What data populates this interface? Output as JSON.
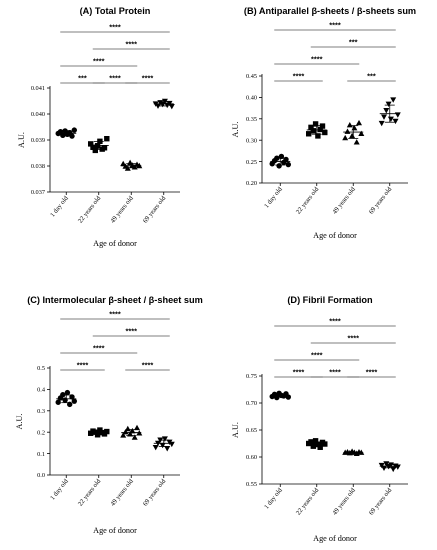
{
  "chart_data": [
    {
      "type": "scatter",
      "title": "(A) Total Protein",
      "xlabel": "Age of donor",
      "ylabel": "A.U.",
      "ylim": [
        0.037,
        0.041
      ],
      "yticks": [
        "0.037",
        "0.038",
        "0.039",
        "0.040",
        "0.041"
      ],
      "categories": [
        "1 day old",
        "22 years old",
        "49 years old",
        "69 years old"
      ],
      "markers": [
        "circle",
        "square",
        "triangle-up",
        "triangle-down"
      ],
      "series": [
        {
          "values": [
            0.03925,
            0.03932,
            0.03918,
            0.03935,
            0.03922,
            0.03928,
            0.03915,
            0.03938
          ],
          "mean": 0.03926,
          "sd": 0.0001
        },
        {
          "values": [
            0.03885,
            0.03872,
            0.0386,
            0.03878,
            0.03895,
            0.03865,
            0.0387,
            0.03905
          ],
          "mean": 0.03879,
          "sd": 0.00015
        },
        {
          "values": [
            0.03808,
            0.03798,
            0.0379,
            0.03812,
            0.03802,
            0.03795,
            0.03805,
            0.038
          ],
          "mean": 0.03801,
          "sd": 8e-05
        },
        {
          "values": [
            0.0404,
            0.04032,
            0.04045,
            0.04038,
            0.0405,
            0.04035,
            0.04042,
            0.0403
          ],
          "mean": 0.04039,
          "sd": 8e-05
        }
      ],
      "comparisons": [
        {
          "from": 0,
          "to": 3,
          "label": "****"
        },
        {
          "from": 1,
          "to": 3,
          "label": "****"
        },
        {
          "from": 0,
          "to": 2,
          "label": "****"
        },
        {
          "from": 0,
          "to": 1,
          "label": "***"
        },
        {
          "from": 1,
          "to": 2,
          "label": "****"
        },
        {
          "from": 2,
          "to": 3,
          "label": "****"
        }
      ]
    },
    {
      "type": "scatter",
      "title": "(B) Antiparallel β-sheets / β-sheets sum",
      "xlabel": "Age of donor",
      "ylabel": "A.U.",
      "ylim": [
        0.2,
        0.45
      ],
      "yticks": [
        "0.20",
        "0.25",
        "0.30",
        "0.35",
        "0.40",
        "0.45"
      ],
      "categories": [
        "1 day old",
        "22 years old",
        "49 years old",
        "69 years old"
      ],
      "markers": [
        "circle",
        "square",
        "triangle-up",
        "triangle-down"
      ],
      "series": [
        {
          "values": [
            0.245,
            0.252,
            0.258,
            0.24,
            0.262,
            0.248,
            0.255,
            0.243
          ],
          "mean": 0.25,
          "sd": 0.008
        },
        {
          "values": [
            0.315,
            0.33,
            0.322,
            0.338,
            0.31,
            0.325,
            0.333,
            0.318
          ],
          "mean": 0.324,
          "sd": 0.01
        },
        {
          "values": [
            0.305,
            0.32,
            0.335,
            0.31,
            0.328,
            0.295,
            0.34,
            0.315
          ],
          "mean": 0.319,
          "sd": 0.015
        },
        {
          "values": [
            0.34,
            0.355,
            0.37,
            0.385,
            0.35,
            0.395,
            0.345,
            0.36
          ],
          "mean": 0.362,
          "sd": 0.02
        }
      ],
      "comparisons": [
        {
          "from": 0,
          "to": 3,
          "label": "****"
        },
        {
          "from": 1,
          "to": 3,
          "label": "***"
        },
        {
          "from": 0,
          "to": 2,
          "label": "****"
        },
        {
          "from": 0,
          "to": 1,
          "label": "****"
        },
        {
          "from": 2,
          "to": 3,
          "label": "***"
        }
      ]
    },
    {
      "type": "scatter",
      "title": "(C) Intermolecular β-sheet / β-sheet sum",
      "xlabel": "Age of donor",
      "ylabel": "A.U.",
      "ylim": [
        0.0,
        0.5
      ],
      "yticks": [
        "0.0",
        "0.1",
        "0.2",
        "0.3",
        "0.4",
        "0.5"
      ],
      "categories": [
        "1 day old",
        "22 years old",
        "49 years old",
        "69 years old"
      ],
      "markers": [
        "circle",
        "square",
        "triangle-up",
        "triangle-down"
      ],
      "series": [
        {
          "values": [
            0.34,
            0.36,
            0.375,
            0.35,
            0.385,
            0.33,
            0.365,
            0.345
          ],
          "mean": 0.356,
          "sd": 0.018
        },
        {
          "values": [
            0.195,
            0.205,
            0.2,
            0.188,
            0.21,
            0.198,
            0.192,
            0.203
          ],
          "mean": 0.199,
          "sd": 0.008
        },
        {
          "values": [
            0.185,
            0.2,
            0.215,
            0.19,
            0.205,
            0.175,
            0.22,
            0.195
          ],
          "mean": 0.198,
          "sd": 0.014
        },
        {
          "values": [
            0.13,
            0.15,
            0.165,
            0.14,
            0.17,
            0.125,
            0.155,
            0.145
          ],
          "mean": 0.148,
          "sd": 0.015
        }
      ],
      "comparisons": [
        {
          "from": 0,
          "to": 3,
          "label": "****"
        },
        {
          "from": 1,
          "to": 3,
          "label": "****"
        },
        {
          "from": 0,
          "to": 2,
          "label": "****"
        },
        {
          "from": 0,
          "to": 1,
          "label": "****"
        },
        {
          "from": 2,
          "to": 3,
          "label": "****"
        }
      ]
    },
    {
      "type": "scatter",
      "title": "(D) Fibril Formation",
      "xlabel": "Age of donor",
      "ylabel": "A.U.",
      "ylim": [
        0.55,
        0.75
      ],
      "yticks": [
        "0.55",
        "0.60",
        "0.65",
        "0.70",
        "0.75"
      ],
      "categories": [
        "1 day old",
        "22 years old",
        "49 years old",
        "69 years old"
      ],
      "markers": [
        "circle",
        "square",
        "triangle-up",
        "triangle-down"
      ],
      "series": [
        {
          "values": [
            0.712,
            0.716,
            0.71,
            0.718,
            0.714,
            0.713,
            0.717,
            0.711
          ],
          "mean": 0.714,
          "sd": 0.003
        },
        {
          "values": [
            0.625,
            0.628,
            0.62,
            0.63,
            0.623,
            0.618,
            0.627,
            0.624
          ],
          "mean": 0.624,
          "sd": 0.004
        },
        {
          "values": [
            0.608,
            0.609,
            0.607,
            0.61,
            0.608,
            0.606,
            0.609,
            0.608
          ],
          "mean": 0.608,
          "sd": 0.001
        },
        {
          "values": [
            0.585,
            0.58,
            0.588,
            0.583,
            0.586,
            0.578,
            0.584,
            0.582
          ],
          "mean": 0.583,
          "sd": 0.003
        }
      ],
      "comparisons": [
        {
          "from": 0,
          "to": 3,
          "label": "****"
        },
        {
          "from": 1,
          "to": 3,
          "label": "****"
        },
        {
          "from": 0,
          "to": 2,
          "label": "****"
        },
        {
          "from": 0,
          "to": 1,
          "label": "****"
        },
        {
          "from": 1,
          "to": 2,
          "label": "****"
        },
        {
          "from": 2,
          "to": 3,
          "label": "****"
        }
      ]
    }
  ]
}
